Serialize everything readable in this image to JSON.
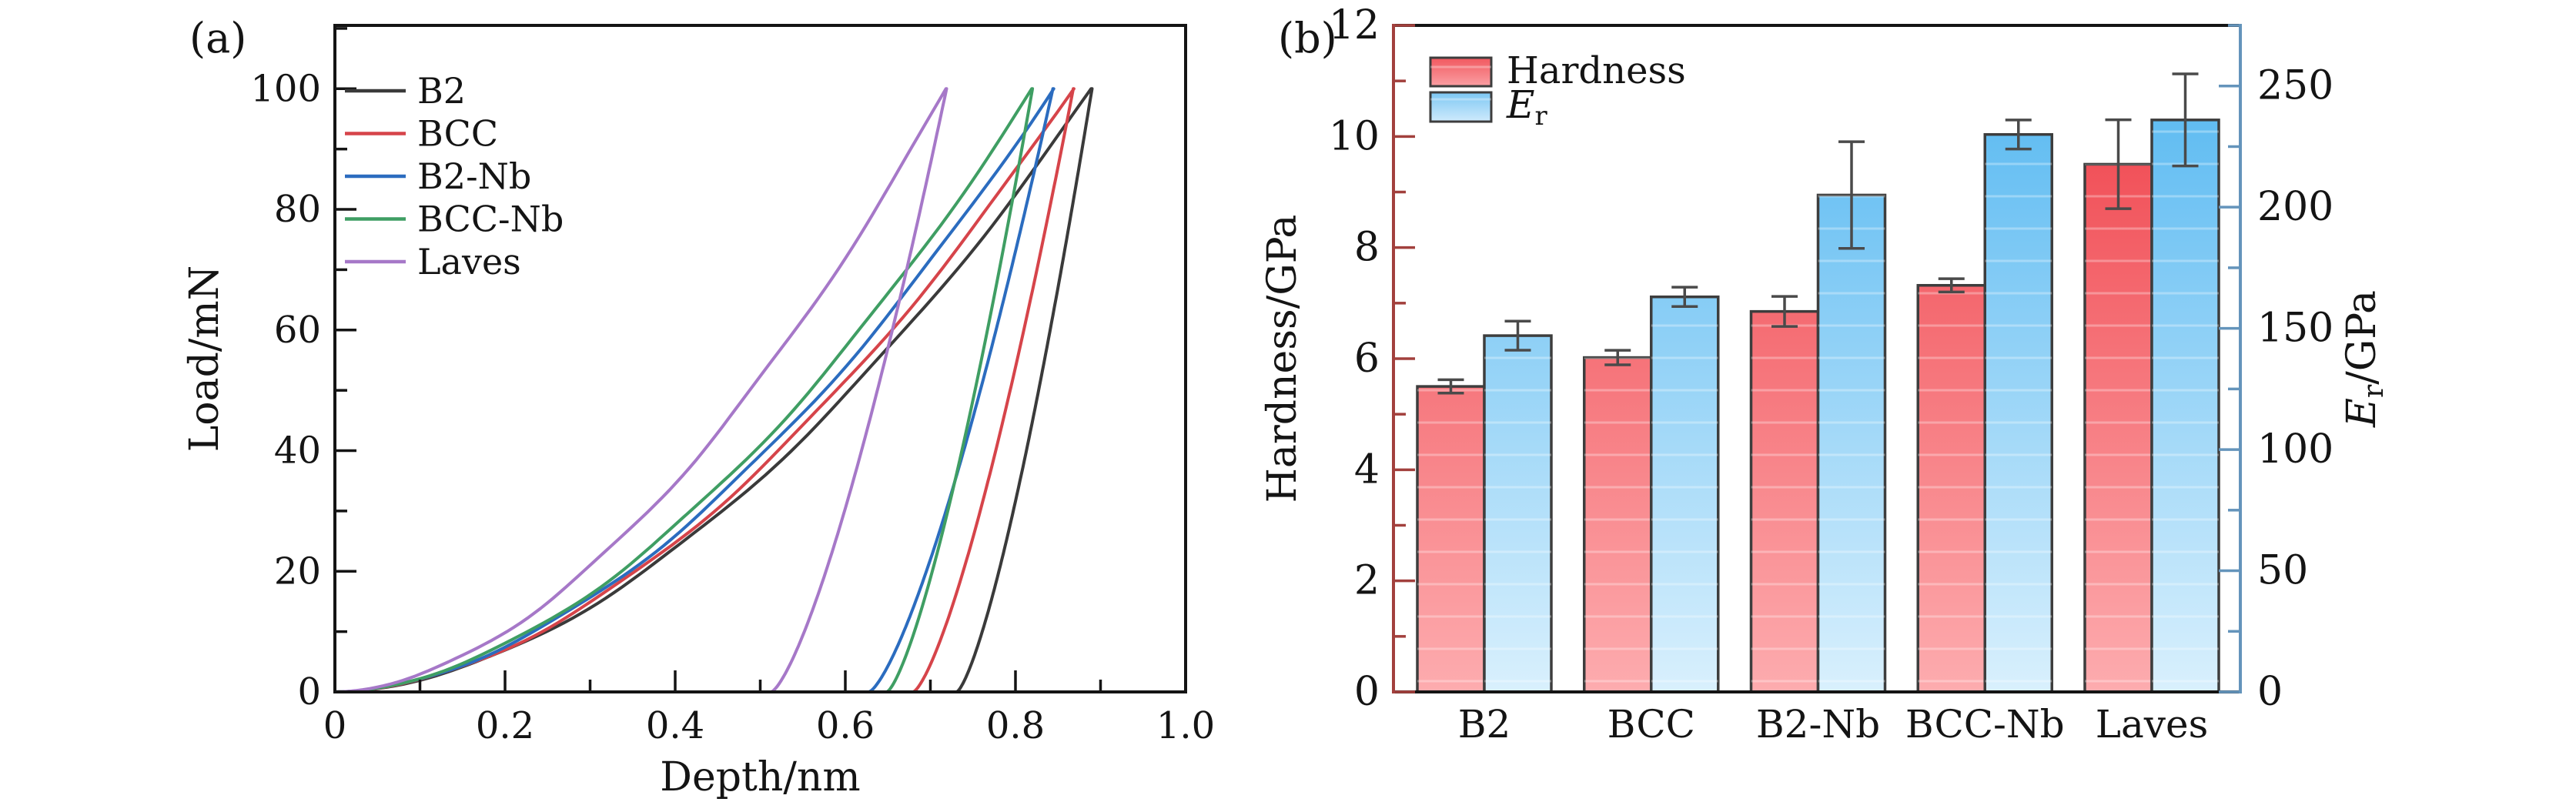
{
  "chart_data": [
    {
      "panel_label": "(a)",
      "type": "line",
      "title": "",
      "xlabel": "Depth/nm",
      "ylabel": "Load/mN",
      "xlim": [
        0,
        1.0
      ],
      "ylim": [
        0,
        110.5
      ],
      "x_major_ticks": [
        0,
        0.2,
        0.4,
        0.6,
        0.8,
        1.0
      ],
      "x_major_labels": [
        "0",
        "0.2",
        "0.4",
        "0.6",
        "0.8",
        "1.0"
      ],
      "x_minor_ticks": [
        0.1,
        0.3,
        0.5,
        0.7,
        0.9
      ],
      "y_major_ticks": [
        0,
        20,
        40,
        60,
        80,
        100
      ],
      "y_major_labels": [
        "0",
        "20",
        "40",
        "60",
        "80",
        "100"
      ],
      "y_minor_ticks": [
        10,
        30,
        50,
        70,
        90,
        110
      ],
      "grid": false,
      "legend_position": "upper left inside",
      "peak_load_mN": 100,
      "loading_exponent": 1.8,
      "unloading_exponent": 1.38,
      "series": [
        {
          "name": "B2",
          "color": "#3a3a3a",
          "h_max_nm": 0.89,
          "h_residual_nm": 0.731
        },
        {
          "name": "BCC",
          "color": "#d6444a",
          "h_max_nm": 0.868,
          "h_residual_nm": 0.68
        },
        {
          "name": "B2-Nb",
          "color": "#2b6cbf",
          "h_max_nm": 0.844,
          "h_residual_nm": 0.628
        },
        {
          "name": "BCC-Nb",
          "color": "#3f9e63",
          "h_max_nm": 0.82,
          "h_residual_nm": 0.649
        },
        {
          "name": "Laves",
          "color": "#a678c8",
          "h_max_nm": 0.719,
          "h_residual_nm": 0.513
        }
      ]
    },
    {
      "panel_label": "(b)",
      "type": "bar",
      "title": "",
      "categories": [
        "B2",
        "BCC",
        "B2-Nb",
        "BCC-Nb",
        "Laves"
      ],
      "left_axis": {
        "label": "Hardness/GPa",
        "lim": [
          0,
          12
        ],
        "major_ticks": [
          0,
          2,
          4,
          6,
          8,
          10,
          12
        ],
        "major_labels": [
          "0",
          "2",
          "4",
          "6",
          "8",
          "10",
          "12"
        ],
        "minor_ticks": [
          1,
          3,
          5,
          7,
          9,
          11
        ],
        "color": "#a2403d"
      },
      "right_axis": {
        "label_main": "E",
        "label_sub": "r",
        "label_rest": "/GPa",
        "lim": [
          0,
          275
        ],
        "major_ticks": [
          0,
          50,
          100,
          150,
          200,
          250
        ],
        "major_labels": [
          "0",
          "50",
          "100",
          "150",
          "200",
          "250"
        ],
        "minor_ticks": [
          25,
          75,
          125,
          175,
          225,
          275
        ],
        "color": "#6494bb"
      },
      "series": [
        {
          "name": "Hardness",
          "axis": "left",
          "values": [
            5.5,
            6.02,
            6.85,
            7.32,
            9.5
          ],
          "errors": [
            0.12,
            0.13,
            0.27,
            0.12,
            0.8
          ],
          "gradient_top": "#ee3a43",
          "gradient_bottom": "#fdacaf",
          "legend_gradient_top": "#f1585f",
          "legend_gradient_bottom": "#fa9fa3"
        },
        {
          "name_main": "E",
          "name_sub": "r",
          "axis": "right",
          "values": [
            147,
            163,
            205,
            230,
            236
          ],
          "errors": [
            6,
            4,
            22,
            6,
            19
          ],
          "gradient_top": "#4db4f0",
          "gradient_bottom": "#d9f0fd",
          "legend_gradient_top": "#7cc7f3",
          "legend_gradient_bottom": "#cfeafc"
        }
      ],
      "bar_outline_color": "#3d3d3d",
      "error_bar_color": "#4a4a4a",
      "frame_color": "#141414"
    }
  ]
}
